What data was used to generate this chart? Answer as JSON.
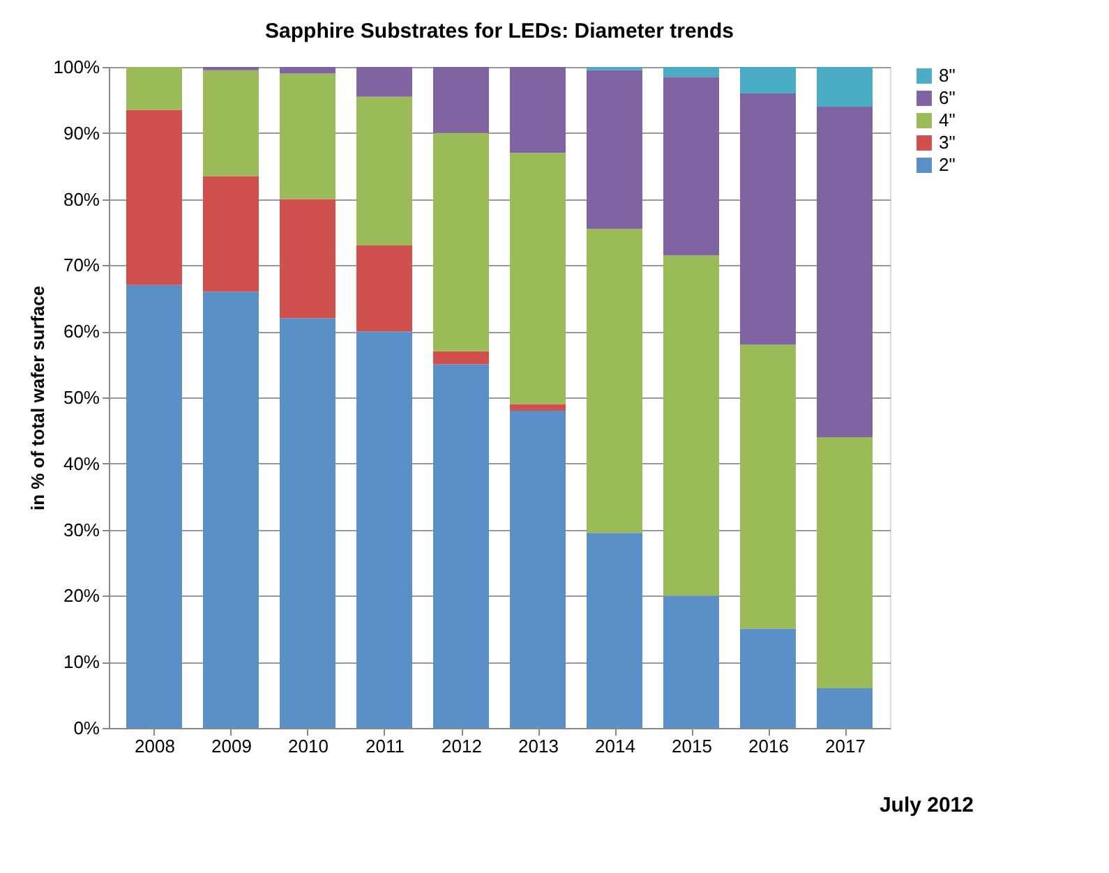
{
  "chart_data": {
    "type": "bar",
    "stacked": true,
    "title": "Sapphire Substrates for LEDs: Diameter trends",
    "ylabel": "in % of total wafer surface",
    "categories": [
      "2008",
      "2009",
      "2010",
      "2011",
      "2012",
      "2013",
      "2014",
      "2015",
      "2016",
      "2017"
    ],
    "series": [
      {
        "name": "2\"",
        "color": "#5b8fc7",
        "values": [
          67,
          66,
          62,
          60,
          55,
          48,
          29.5,
          20,
          15,
          6
        ]
      },
      {
        "name": "3\"",
        "color": "#d0504d",
        "values": [
          26.5,
          17.5,
          18,
          13,
          2,
          1,
          0,
          0,
          0,
          0
        ]
      },
      {
        "name": "4\"",
        "color": "#9bbb59",
        "values": [
          6.5,
          16,
          19,
          22.5,
          33,
          38,
          46,
          51.5,
          43,
          38
        ]
      },
      {
        "name": "6\"",
        "color": "#8064a2",
        "values": [
          0,
          0.5,
          1,
          4.5,
          10,
          13,
          24,
          27,
          38,
          50
        ]
      },
      {
        "name": "8\"",
        "color": "#4bacc6",
        "values": [
          0,
          0,
          0,
          0,
          0,
          0,
          0.5,
          1.5,
          4,
          6
        ]
      }
    ],
    "ylim": [
      0,
      100
    ],
    "yticks": [
      {
        "value": 0,
        "label": "0%"
      },
      {
        "value": 10,
        "label": "10%"
      },
      {
        "value": 20,
        "label": "20%"
      },
      {
        "value": 30,
        "label": "30%"
      },
      {
        "value": 40,
        "label": "40%"
      },
      {
        "value": 50,
        "label": "50%"
      },
      {
        "value": 60,
        "label": "60%"
      },
      {
        "value": 70,
        "label": "70%"
      },
      {
        "value": 80,
        "label": "80%"
      },
      {
        "value": 90,
        "label": "90%"
      },
      {
        "value": 100,
        "label": "100%"
      }
    ],
    "grid": "y",
    "legend": "right",
    "annotations": [
      "July 2012"
    ]
  }
}
